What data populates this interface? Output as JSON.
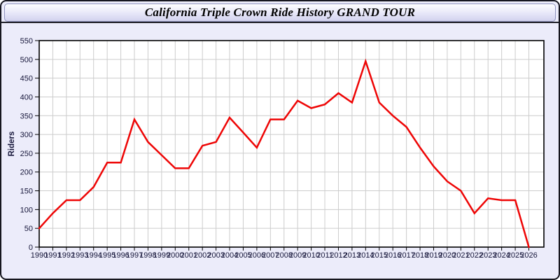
{
  "window": {
    "bg_color": "#ECECFA",
    "border_color": "#16161e"
  },
  "title_bar": {
    "title": "California Triple Crown Ride History GRAND TOUR",
    "text_color": "#000000",
    "gradient_top": "#FEFEFF",
    "gradient_mid": "#E7E7F8",
    "gradient_bottom": "#D2D2EE",
    "border_color": "#8F93BD"
  },
  "chart_data": {
    "type": "line",
    "title": "California Triple Crown Ride History GRAND TOUR",
    "xlabel": "",
    "ylabel": "Riders",
    "x": [
      1990,
      1991,
      1992,
      1993,
      1994,
      1995,
      1996,
      1997,
      1998,
      1999,
      2000,
      2001,
      2002,
      2003,
      2004,
      2005,
      2006,
      2007,
      2008,
      2009,
      2010,
      2011,
      2012,
      2013,
      2014,
      2015,
      2016,
      2017,
      2018,
      2019,
      2020,
      2021,
      2022,
      2023,
      2024,
      2025,
      2026
    ],
    "series": [
      {
        "name": "Riders",
        "color": "#EE0505",
        "values": [
          50,
          90,
          125,
          125,
          160,
          225,
          225,
          340,
          280,
          245,
          210,
          210,
          270,
          280,
          345,
          305,
          265,
          340,
          340,
          390,
          370,
          380,
          410,
          385,
          495,
          385,
          350,
          320,
          265,
          215,
          175,
          150,
          90,
          130,
          125,
          125,
          0
        ]
      }
    ],
    "ylim": [
      0,
      550
    ],
    "ytick_step": 50,
    "grid": true,
    "grid_color": "#CCCCCC",
    "plot_bg": "#FFFFFF",
    "axis_color": "#000000",
    "tick_label_color": "#16163A",
    "legend_position": "none"
  }
}
